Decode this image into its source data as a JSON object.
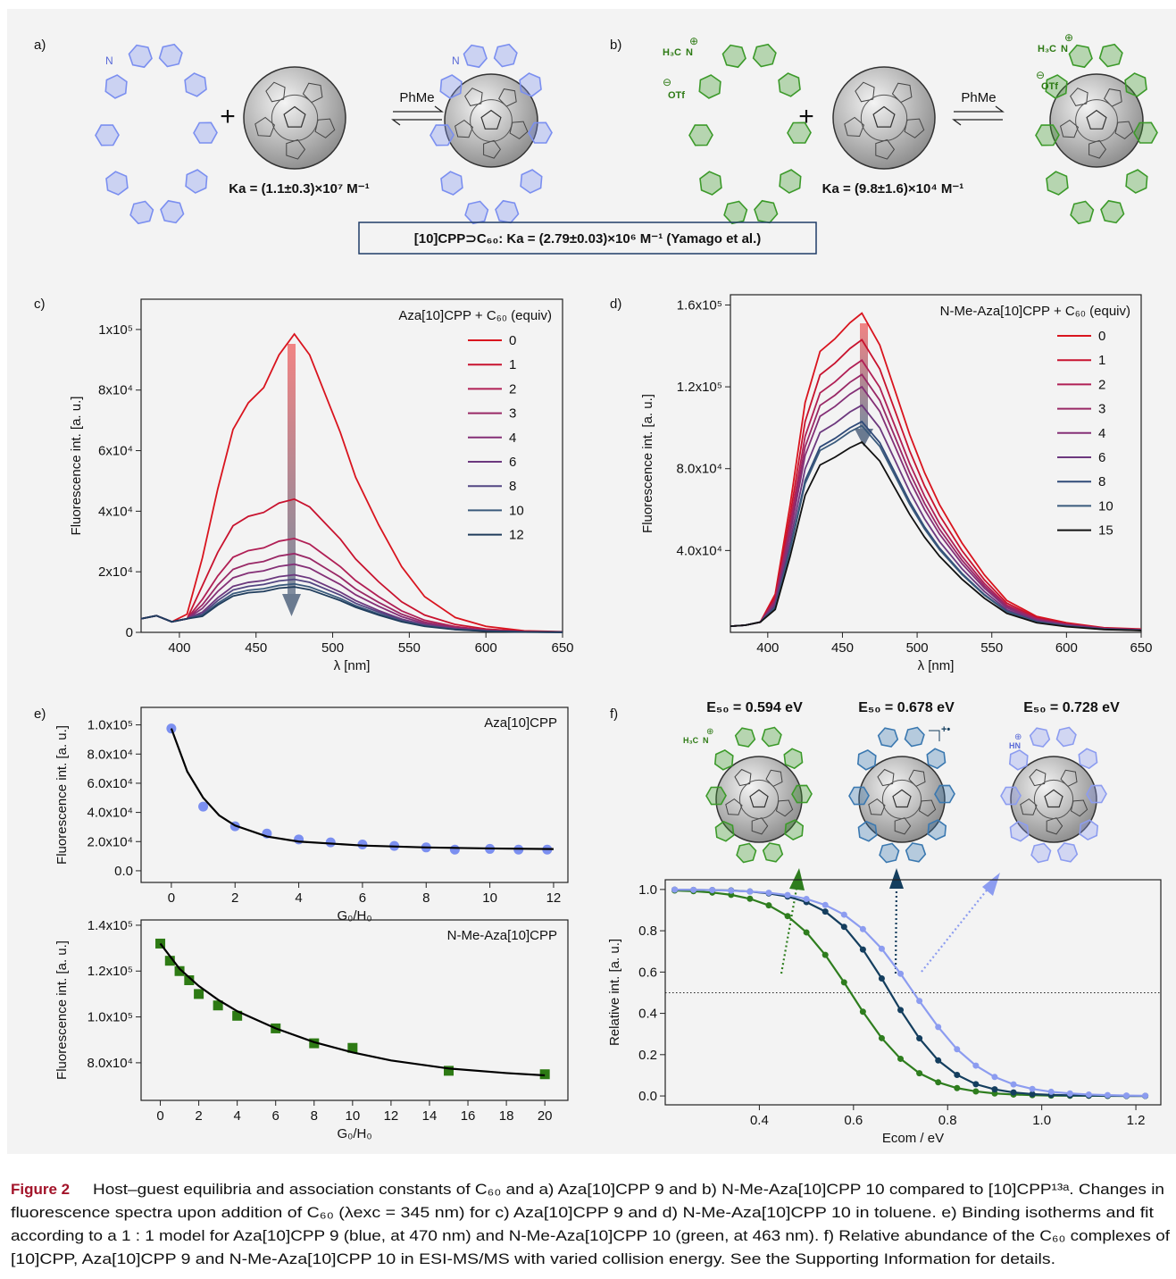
{
  "panel_labels": [
    "a)",
    "b)",
    "c)",
    "d)",
    "e)",
    "f)"
  ],
  "scheme": {
    "solvent": "PhMe",
    "plus": "+",
    "ka_a": "Ka = (1.1±0.3)×10⁷ M⁻¹",
    "ka_b": "Ka = (9.8±1.6)×10⁴ M⁻¹",
    "reference": "[10]CPP⊃C₆₀: Ka = (2.79±0.03)×10⁶ M⁻¹ (Yamago et al.)",
    "atoms": {
      "n": "N",
      "methyl": "H₃C",
      "plus_charge": "⊕",
      "counterion": "OTf",
      "minus_charge": "⊖",
      "nh": "HN",
      "radical_cation": "+•"
    }
  },
  "chart_data": [
    {
      "type": "line",
      "legend_title": "Aza[10]CPP + C₆₀ (equiv)",
      "xlabel": "λ [nm]",
      "ylabel": "Fluorescence int. [a. u.]",
      "x": [
        375,
        385,
        395,
        405,
        415,
        425,
        435,
        445,
        455,
        465,
        475,
        485,
        495,
        505,
        515,
        530,
        545,
        560,
        580,
        600,
        625,
        650
      ],
      "xlim": [
        375,
        650
      ],
      "xticks": [
        400,
        450,
        500,
        550,
        600,
        650
      ],
      "ylim": [
        0,
        110000
      ],
      "yticks": [
        0,
        {
          "value": 20000,
          "label": "2x10⁴"
        },
        {
          "value": 40000,
          "label": "4x10⁴"
        },
        {
          "value": 60000,
          "label": "6x10⁴"
        },
        {
          "value": 80000,
          "label": "8x10⁴"
        },
        {
          "value": 100000,
          "label": "1x10⁵"
        }
      ],
      "series": [
        {
          "name": "0",
          "color": "#d9141e",
          "values": [
            4500,
            5500,
            3500,
            6000,
            24600,
            47300,
            67000,
            75800,
            80800,
            91600,
            98500,
            91600,
            78800,
            66000,
            51200,
            35500,
            21700,
            11800,
            4900,
            2000,
            500,
            200
          ]
        },
        {
          "name": "1",
          "color": "#c8122e",
          "values": [
            4500,
            5500,
            3500,
            4500,
            15400,
            26400,
            35200,
            38300,
            39600,
            42700,
            44000,
            41400,
            36100,
            30800,
            24200,
            16700,
            10100,
            5700,
            2600,
            1100,
            350,
            130
          ]
        },
        {
          "name": "2",
          "color": "#b01f55",
          "values": [
            4500,
            5500,
            3500,
            4500,
            10900,
            18600,
            24800,
            27000,
            27900,
            30100,
            31000,
            29100,
            25400,
            21700,
            17100,
            11800,
            7100,
            4000,
            1900,
            780,
            250,
            90
          ]
        },
        {
          "name": "3",
          "color": "#992866",
          "values": [
            4500,
            5500,
            3500,
            4500,
            9100,
            15600,
            20800,
            22600,
            23400,
            25200,
            26000,
            24400,
            21300,
            18200,
            14300,
            9900,
            6000,
            3400,
            1560,
            650,
            210,
            80
          ]
        },
        {
          "name": "4",
          "color": "#842f76",
          "values": [
            4500,
            5500,
            3500,
            4500,
            7900,
            13500,
            18000,
            19600,
            20300,
            21800,
            22500,
            21200,
            18500,
            15800,
            12400,
            8600,
            5200,
            2900,
            1350,
            560,
            180,
            70
          ]
        },
        {
          "name": "6",
          "color": "#6c387e",
          "values": [
            4500,
            5500,
            3500,
            4500,
            6700,
            11400,
            15200,
            16500,
            17100,
            18400,
            19000,
            17900,
            15600,
            13300,
            10500,
            7200,
            4400,
            2500,
            1140,
            480,
            150,
            60
          ]
        },
        {
          "name": "8",
          "color": "#524582",
          "values": [
            4500,
            5500,
            3500,
            4500,
            6100,
            10500,
            14000,
            15200,
            15800,
            17000,
            17500,
            16500,
            14400,
            12300,
            9600,
            6700,
            4000,
            2300,
            1050,
            440,
            140,
            50
          ]
        },
        {
          "name": "10",
          "color": "#3a5a7c",
          "values": [
            4500,
            5500,
            3500,
            4500,
            5600,
            9600,
            12800,
            13900,
            14400,
            15500,
            16000,
            15000,
            13100,
            11200,
            8800,
            6100,
            3700,
            2100,
            960,
            400,
            130,
            50
          ]
        },
        {
          "name": "12",
          "color": "#1f3c5c",
          "values": [
            4500,
            5500,
            3500,
            4500,
            5300,
            9000,
            12000,
            13100,
            13500,
            14600,
            15000,
            14100,
            12300,
            10500,
            8300,
            5700,
            3500,
            2000,
            900,
            380,
            120,
            50
          ]
        }
      ]
    },
    {
      "type": "line",
      "legend_title": "N-Me-Aza[10]CPP + C₆₀ (equiv)",
      "xlabel": "λ [nm]",
      "ylabel": "Fluorescence int. [a. u.]",
      "x": [
        375,
        385,
        395,
        405,
        415,
        425,
        435,
        445,
        455,
        463,
        475,
        485,
        495,
        505,
        515,
        530,
        545,
        560,
        580,
        600,
        625,
        650
      ],
      "xlim": [
        375,
        650
      ],
      "xticks": [
        400,
        450,
        500,
        550,
        600,
        650
      ],
      "ylim": [
        0,
        165000
      ],
      "yticks": [
        {
          "value": 40000,
          "label": "4.0x10⁴"
        },
        {
          "value": 80000,
          "label": "8.0x10⁴"
        },
        {
          "value": 120000,
          "label": "1.2x10⁵"
        },
        {
          "value": 160000,
          "label": "1.6x10⁵"
        }
      ],
      "series": [
        {
          "name": "0",
          "color": "#d9141e",
          "values": [
            3000,
            3500,
            5000,
            18700,
            62400,
            112300,
            137300,
            143500,
            151300,
            156000,
            140400,
            118600,
            96700,
            78000,
            62400,
            43700,
            28100,
            15600,
            7800,
            4700,
            2300,
            1600
          ]
        },
        {
          "name": "1",
          "color": "#c8122e",
          "values": [
            3000,
            3500,
            5000,
            17200,
            57200,
            103000,
            125800,
            131600,
            138700,
            143000,
            128700,
            108700,
            88700,
            71500,
            57200,
            40000,
            25700,
            14300,
            7200,
            4300,
            2100,
            1400
          ]
        },
        {
          "name": "2",
          "color": "#b01f55",
          "values": [
            3000,
            3500,
            5000,
            16000,
            53200,
            95800,
            117000,
            122400,
            129000,
            133000,
            119700,
            101100,
            82500,
            66500,
            53200,
            37200,
            23900,
            13300,
            6700,
            4000,
            2000,
            1300
          ]
        },
        {
          "name": "3",
          "color": "#992866",
          "values": [
            3000,
            3500,
            5000,
            15100,
            50400,
            90700,
            110900,
            115900,
            122200,
            126000,
            113400,
            95800,
            78100,
            63000,
            50400,
            35300,
            22700,
            12600,
            6300,
            3800,
            1900,
            1300
          ]
        },
        {
          "name": "4",
          "color": "#842f76",
          "values": [
            3000,
            3500,
            5000,
            14400,
            48000,
            86400,
            105600,
            110400,
            116400,
            120000,
            108000,
            91200,
            74400,
            60000,
            48000,
            33600,
            21600,
            12000,
            6000,
            3600,
            1800,
            1200
          ]
        },
        {
          "name": "6",
          "color": "#6c387e",
          "values": [
            3000,
            3500,
            5000,
            13300,
            44400,
            79900,
            97700,
            102100,
            107700,
            111000,
            99900,
            84400,
            68800,
            55500,
            44400,
            31100,
            20000,
            11100,
            5600,
            3300,
            1700,
            1100
          ]
        },
        {
          "name": "8",
          "color": "#2f4a78",
          "values": [
            3000,
            3500,
            5000,
            12400,
            41200,
            74200,
            90600,
            94800,
            99900,
            103000,
            92700,
            78300,
            63900,
            51500,
            41200,
            28800,
            18500,
            10300,
            5200,
            3100,
            1500,
            1000
          ]
        },
        {
          "name": "10",
          "color": "#3a5a7c",
          "values": [
            3000,
            3500,
            5000,
            12100,
            40400,
            72700,
            88900,
            92900,
            98000,
            101000,
            90900,
            76800,
            62600,
            50500,
            40400,
            28300,
            18200,
            10100,
            5100,
            3000,
            1500,
            1000
          ]
        },
        {
          "name": "15",
          "color": "#111111",
          "values": [
            3000,
            3500,
            5000,
            11200,
            37200,
            67000,
            81800,
            85600,
            90200,
            93000,
            83700,
            70700,
            57700,
            46500,
            37200,
            26000,
            16700,
            9300,
            4700,
            2800,
            1400,
            900
          ]
        }
      ]
    },
    {
      "type": "scatter",
      "title": "Aza[10]CPP",
      "xlabel": "G₀/H₀",
      "ylabel": "Fluorescence int. [a. u.]",
      "xlim": [
        -0.95,
        12.45
      ],
      "xticks": [
        0,
        2,
        4,
        6,
        8,
        10,
        12
      ],
      "ylim": [
        -8000,
        112000
      ],
      "yticks": [
        {
          "value": 0,
          "label": "0.0"
        },
        {
          "value": 20000,
          "label": "2.0x10⁴"
        },
        {
          "value": 40000,
          "label": "4.0x10⁴"
        },
        {
          "value": 60000,
          "label": "6.0x10⁴"
        },
        {
          "value": 80000,
          "label": "8.0x10⁴"
        },
        {
          "value": 100000,
          "label": "1.0x10⁵"
        }
      ],
      "series": [
        {
          "color": "#7b8ff0",
          "marker": "circle",
          "x": [
            0,
            1,
            2,
            3,
            4,
            5,
            6,
            7,
            8,
            8.9,
            10,
            10.9,
            11.8
          ],
          "values": [
            97500,
            44000,
            30500,
            25500,
            21500,
            19500,
            18000,
            17000,
            16000,
            14500,
            15000,
            14500,
            14500
          ]
        },
        {
          "color": "#000000",
          "line": true,
          "x": [
            0,
            0.5,
            1,
            1.5,
            2,
            3,
            4,
            6,
            8,
            10,
            12
          ],
          "values": [
            97500,
            68000,
            50000,
            38000,
            31000,
            23500,
            20000,
            17300,
            16000,
            15300,
            14900
          ]
        }
      ]
    },
    {
      "type": "scatter",
      "title": "N-Me-Aza[10]CPP",
      "xlabel": "G₀/H₀",
      "ylabel": "Fluorescence int. [a. u.]",
      "xlim": [
        -1,
        21.2
      ],
      "xticks": [
        0,
        2,
        4,
        6,
        8,
        10,
        12,
        14,
        16,
        18,
        20
      ],
      "ylim": [
        63600,
        142300
      ],
      "yticks": [
        {
          "value": 80000,
          "label": "8.0x10⁴"
        },
        {
          "value": 100000,
          "label": "1.0x10⁵"
        },
        {
          "value": 120000,
          "label": "1.2x10⁵"
        },
        {
          "value": 140000,
          "label": "1.4x10⁵"
        }
      ],
      "series": [
        {
          "color": "#2d7a14",
          "marker": "square",
          "x": [
            0,
            0.5,
            1,
            1.5,
            2,
            3,
            4,
            6,
            8,
            10,
            15,
            20
          ],
          "values": [
            132000,
            124500,
            120000,
            116000,
            110000,
            105000,
            100500,
            95000,
            88500,
            86500,
            76500,
            75000
          ]
        },
        {
          "color": "#000000",
          "line": true,
          "x": [
            0,
            1,
            2,
            3,
            4,
            6,
            8,
            10,
            12,
            15,
            18,
            20
          ],
          "values": [
            132000,
            121000,
            113500,
            107500,
            102500,
            95000,
            89000,
            84500,
            81000,
            77500,
            75500,
            74500
          ]
        }
      ]
    },
    {
      "type": "scatter",
      "xlabel": "Ecom / eV",
      "ylabel": "Relative int.  [a. u.]",
      "annotations": [
        "E₅₀ = 0.594 eV",
        "E₅₀ = 0.678 eV",
        "E₅₀ = 0.728 eV"
      ],
      "hline": 0.5,
      "x": [
        0.22,
        0.26,
        0.3,
        0.34,
        0.38,
        0.42,
        0.46,
        0.5,
        0.54,
        0.58,
        0.62,
        0.66,
        0.7,
        0.74,
        0.78,
        0.82,
        0.86,
        0.9,
        0.94,
        0.98,
        1.02,
        1.06,
        1.1,
        1.14,
        1.18,
        1.22
      ],
      "xlim": [
        0.2,
        1.253
      ],
      "xticks": [
        0.4,
        0.6,
        0.8,
        {
          "value": 1,
          "label": "1.0"
        },
        1.2
      ],
      "ylim": [
        -0.043,
        1.047
      ],
      "yticks": [
        {
          "value": 0,
          "label": "0.0"
        },
        0.2,
        0.4,
        0.6,
        0.8,
        {
          "value": 1,
          "label": "1.0"
        }
      ],
      "series": [
        {
          "color": "#2e7d1e",
          "marker": "circle",
          "line": true,
          "values": [
            0.995,
            0.992,
            0.985,
            0.974,
            0.955,
            0.923,
            0.871,
            0.792,
            0.683,
            0.55,
            0.408,
            0.28,
            0.18,
            0.11,
            0.066,
            0.038,
            0.022,
            0.012,
            0.007,
            0.004,
            0.002,
            0.001,
            0.001,
            0,
            0,
            0
          ]
        },
        {
          "color": "#143e5e",
          "marker": "circle",
          "line": true,
          "values": [
            0.999,
            0.998,
            0.997,
            0.995,
            0.99,
            0.981,
            0.966,
            0.939,
            0.893,
            0.819,
            0.709,
            0.569,
            0.416,
            0.279,
            0.172,
            0.102,
            0.057,
            0.032,
            0.017,
            0.009,
            0.005,
            0.003,
            0.002,
            0.001,
            0,
            0
          ]
        },
        {
          "color": "#8c9cf0",
          "marker": "circle",
          "line": true,
          "values": [
            0.999,
            0.998,
            0.997,
            0.994,
            0.99,
            0.984,
            0.973,
            0.954,
            0.925,
            0.878,
            0.808,
            0.713,
            0.592,
            0.46,
            0.334,
            0.226,
            0.147,
            0.092,
            0.056,
            0.034,
            0.02,
            0.012,
            0.007,
            0.004,
            0.002,
            0.001
          ]
        }
      ]
    }
  ],
  "caption": {
    "label": "Figure 2",
    "lines": [
      "Host–guest equilibria and association constants of C₆₀ and a) Aza[10]CPP 9 and b) N-Me-Aza[10]CPP 10 compared to [10]CPP¹³ᵃ. Changes in",
      "fluorescence spectra upon addition of C₆₀ (λexc = 345 nm) for c) Aza[10]CPP 9 and d) N-Me-Aza[10]CPP 10 in toluene. e) Binding isotherms and fit",
      "according to a 1 : 1 model for Aza[10]CPP 9 (blue, at 470 nm) and N-Me-Aza[10]CPP 10 (green, at 463 nm). f) Relative abundance of the C₆₀ complexes of",
      "[10]CPP, Aza[10]CPP 9 and N-Me-Aza[10]CPP 10 in ESI-MS/MS with varied collision energy. See the Supporting Information for details."
    ]
  }
}
